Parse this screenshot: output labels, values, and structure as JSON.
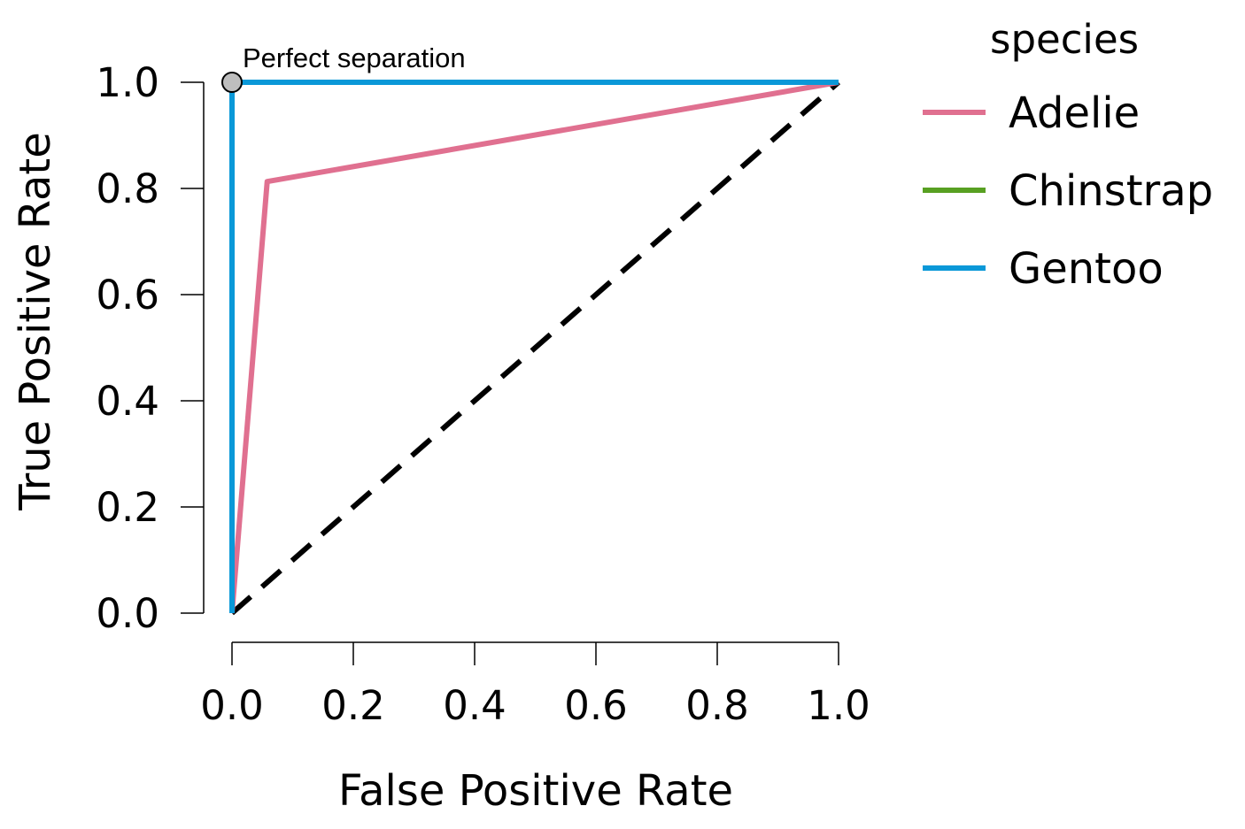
{
  "chart_data": {
    "type": "line",
    "xlabel": "False Positive Rate",
    "ylabel": "True Positive Rate",
    "xlim": [
      0,
      1
    ],
    "ylim": [
      0,
      1
    ],
    "x_ticks": [
      "0.0",
      "0.2",
      "0.4",
      "0.6",
      "0.8",
      "1.0"
    ],
    "y_ticks": [
      "0.0",
      "0.2",
      "0.4",
      "0.6",
      "0.8",
      "1.0"
    ],
    "grid": false,
    "legend_title": "species",
    "legend_position": "right",
    "series": [
      {
        "name": "Adelie",
        "color": "#E07090",
        "points": [
          [
            0,
            0
          ],
          [
            0.058,
            0.813
          ],
          [
            1,
            1
          ]
        ]
      },
      {
        "name": "Chinstrap",
        "color": "#58A022",
        "points": [
          [
            0,
            0
          ],
          [
            0,
            1
          ],
          [
            1,
            1
          ]
        ]
      },
      {
        "name": "Gentoo",
        "color": "#0A98D8",
        "points": [
          [
            0,
            0
          ],
          [
            0,
            1
          ],
          [
            1,
            1
          ]
        ]
      }
    ],
    "reference_line": {
      "style": "dashed",
      "color": "#000000",
      "points": [
        [
          0,
          0
        ],
        [
          1,
          1
        ]
      ]
    },
    "annotation": {
      "text": "Perfect separation",
      "point": [
        0,
        1
      ],
      "marker_color": "#BEBEBE"
    }
  }
}
